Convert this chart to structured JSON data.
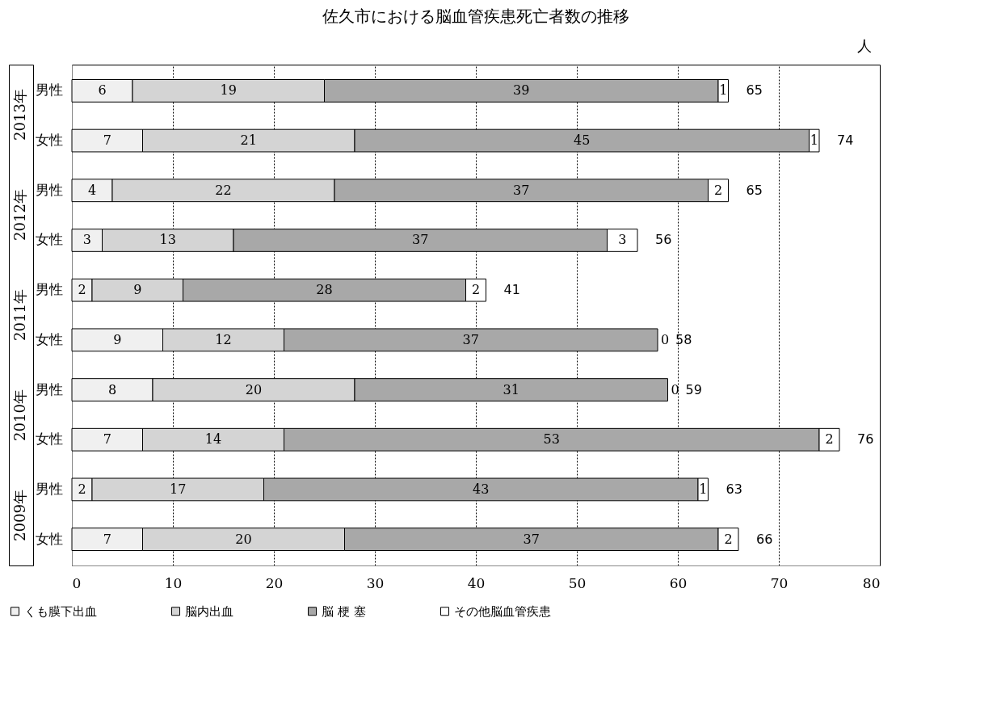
{
  "chart_data": {
    "type": "bar",
    "orientation": "horizontal",
    "stacked": true,
    "title": "佐久市における脳血管疾患死亡者数の推移",
    "categories": [
      "男性",
      "女性",
      "男性",
      "女性",
      "男性",
      "女性",
      "男性",
      "女性",
      "男性",
      "女性"
    ],
    "series": [
      {
        "name": "くも膜下出血",
        "color": "#f0f0f0",
        "values": [
          6,
          7,
          4,
          3,
          2,
          9,
          8,
          7,
          2,
          7
        ]
      },
      {
        "name": "脳内出血",
        "color": "#d4d4d4",
        "values": [
          19,
          21,
          22,
          13,
          9,
          12,
          20,
          14,
          17,
          20
        ]
      },
      {
        "name": "脳 梗 塞",
        "color": "#a8a8a8",
        "values": [
          39,
          45,
          37,
          37,
          28,
          37,
          31,
          53,
          43,
          37
        ]
      },
      {
        "name": "その他脳血管疾患",
        "color": "#ffffff",
        "values": [
          1,
          1,
          2,
          3,
          2,
          0,
          0,
          2,
          1,
          2
        ]
      }
    ],
    "totals": [
      "65",
      "74",
      "65",
      "56",
      "41",
      "58",
      "59",
      "76",
      "63",
      "66"
    ],
    "data_labels": true,
    "annotations": [
      "2013年",
      "2012年",
      "2011年",
      "2010年",
      "2009年",
      "人"
    ],
    "xlim": [
      0,
      80
    ],
    "xticks": [
      0,
      10,
      20,
      30,
      40,
      50,
      60,
      70,
      80
    ],
    "grid": "x",
    "legend": "bottom"
  }
}
